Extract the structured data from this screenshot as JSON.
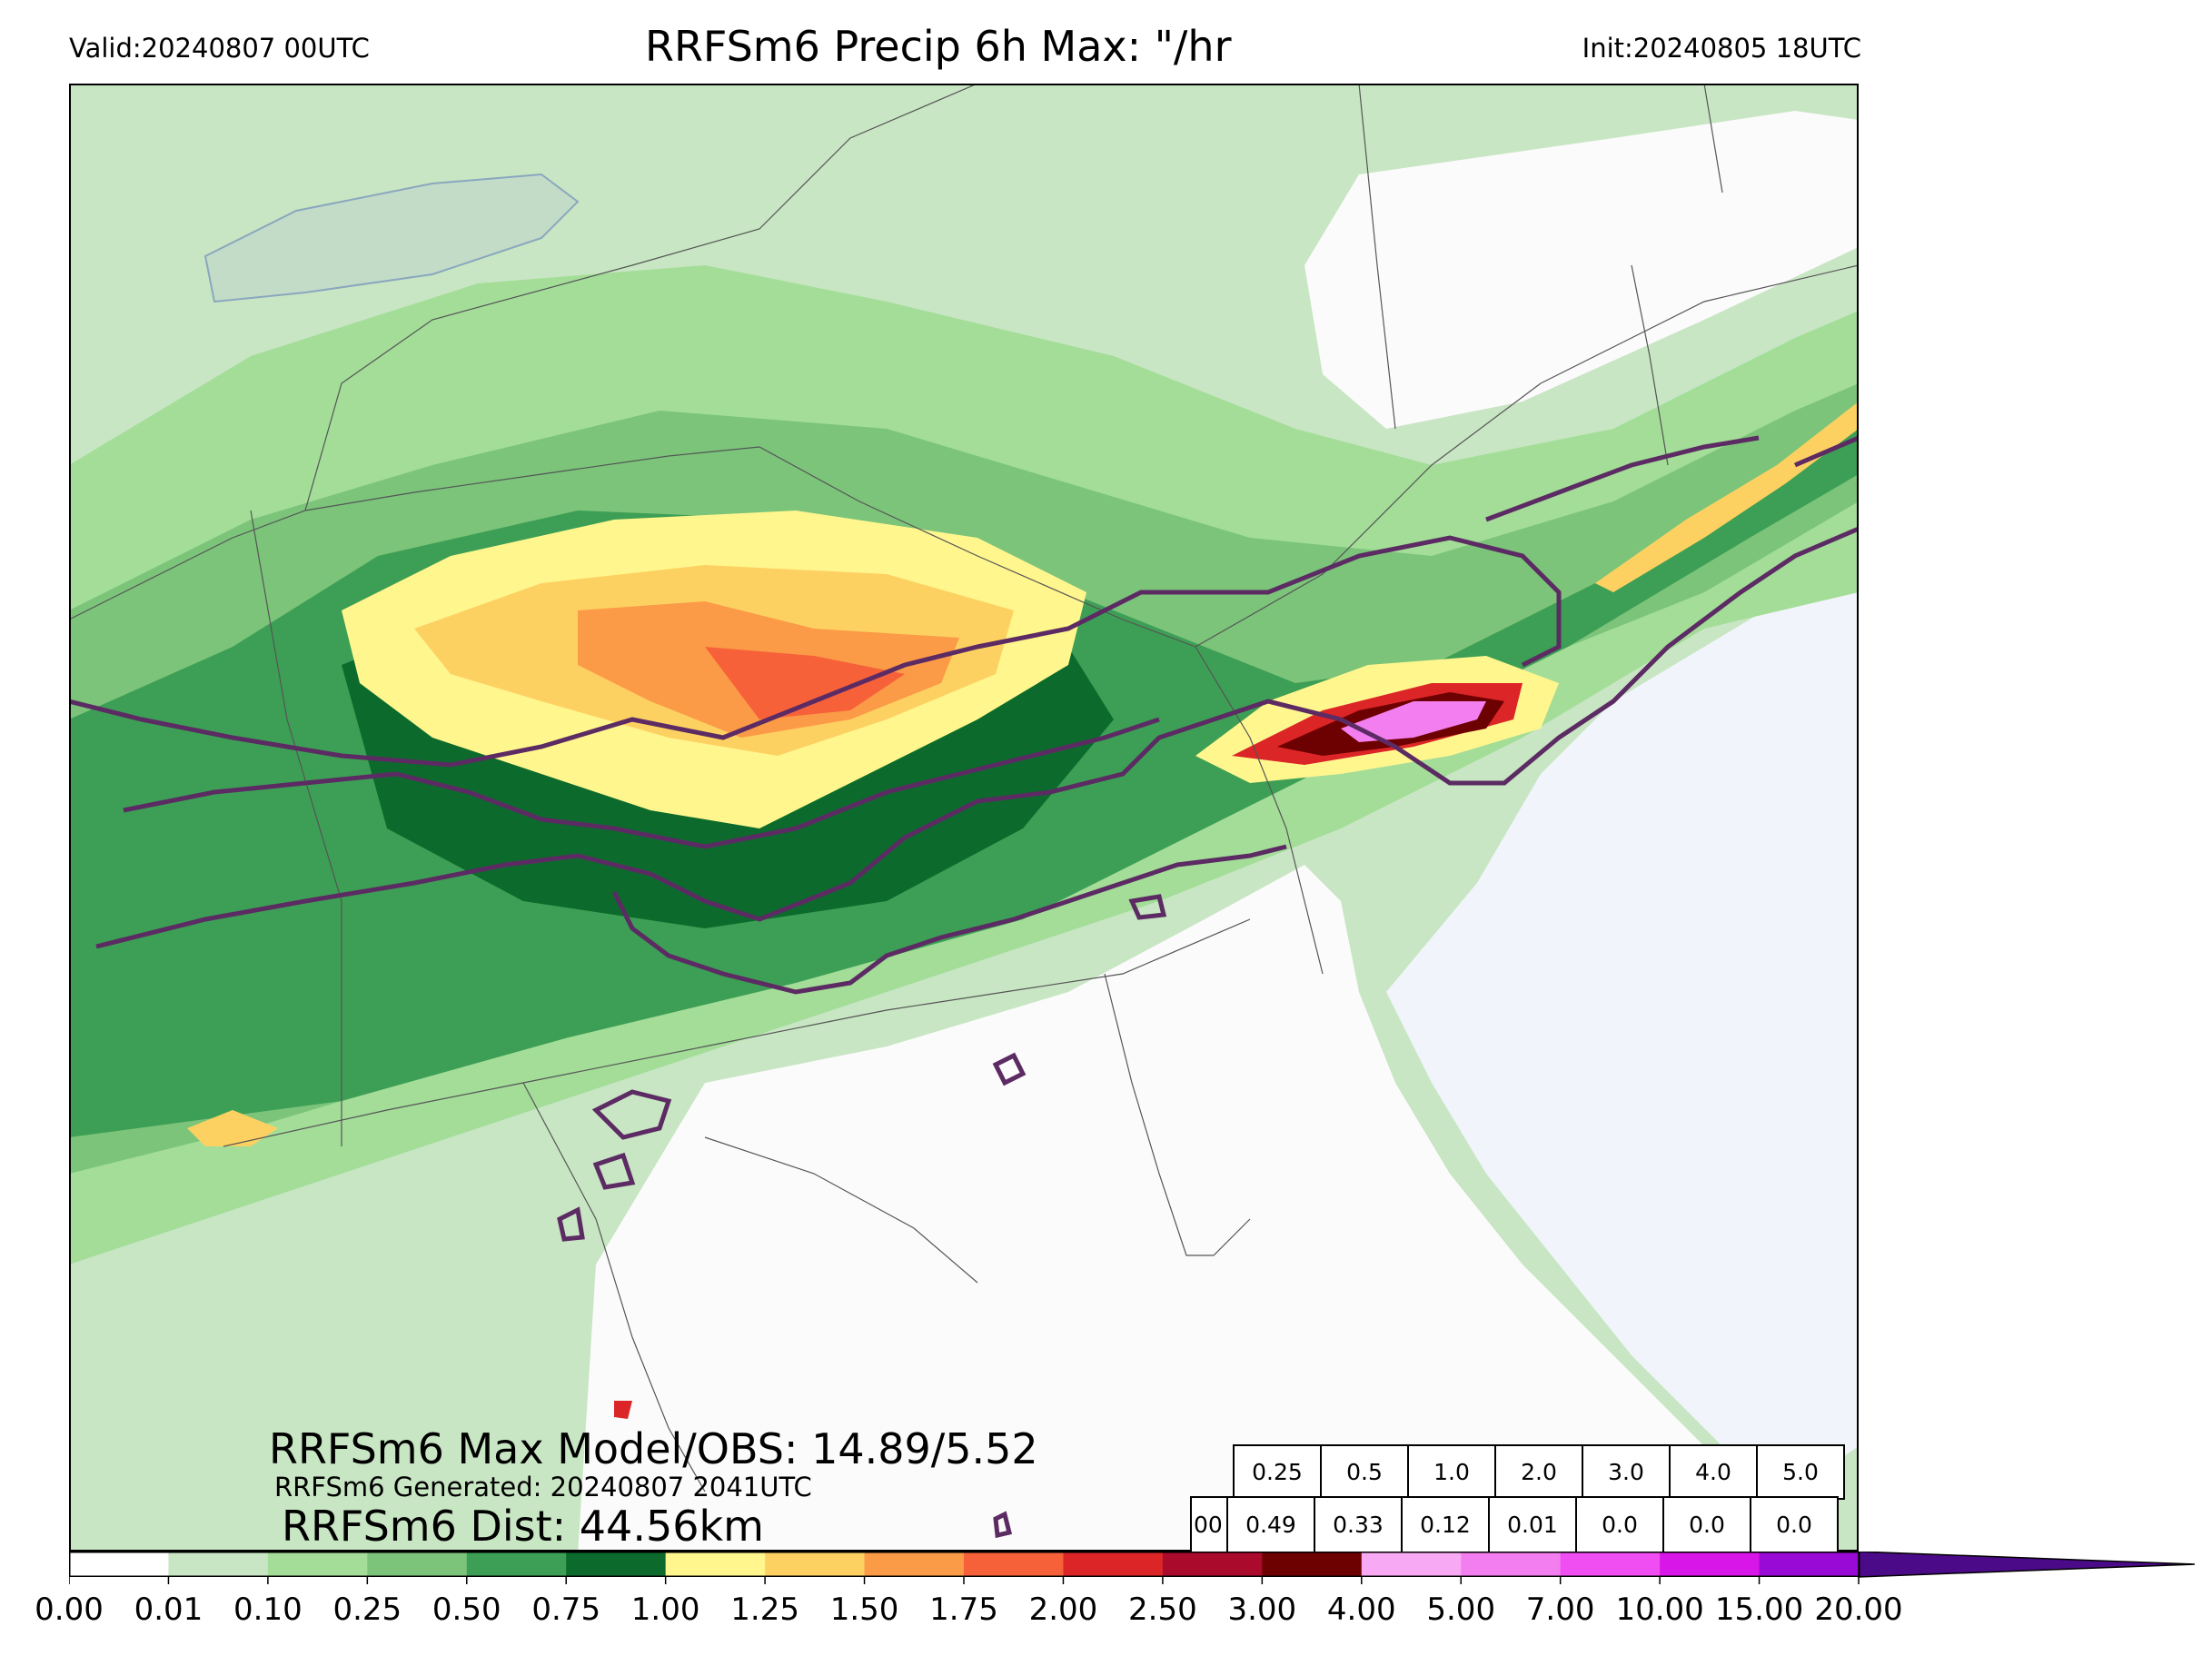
{
  "header": {
    "valid": "Valid:20240807 00UTC",
    "title": "RRFSm6 Precip 6h Max: \"/hr",
    "init": "Init:20240805 18UTC"
  },
  "stats": {
    "max_line": "RRFSm6 Max Model/OBS: 14.89/5.52",
    "generated_line": "RRFSm6 Generated: 20240807 2041UTC",
    "dist_line": "RRFSm6 Dist: 44.56km"
  },
  "threshold_table": {
    "thresholds": [
      "0.25",
      "0.5",
      "1.0",
      "2.0",
      "3.0",
      "4.0",
      "5.0"
    ],
    "lead_label": "00",
    "values": [
      "0.49",
      "0.33",
      "0.12",
      "0.01",
      "0.0",
      "0.0",
      "0.0"
    ]
  },
  "colorbar": {
    "ticks": [
      "0.00",
      "0.01",
      "0.10",
      "0.25",
      "0.50",
      "0.75",
      "1.00",
      "1.25",
      "1.50",
      "1.75",
      "2.00",
      "2.50",
      "3.00",
      "4.00",
      "5.00",
      "7.00",
      "10.00",
      "15.00",
      "20.00"
    ],
    "colors": [
      "#ffffff",
      "#c8e6c3",
      "#a3dd98",
      "#7bc47a",
      "#3d9f55",
      "#0c6b2c",
      "#fff68e",
      "#fdd161",
      "#fb9a47",
      "#f6613a",
      "#dc2527",
      "#aa0a2c",
      "#6d0000",
      "#f8a9f3",
      "#f37ef0",
      "#f04ef2",
      "#d816e7",
      "#9a0ad7"
    ],
    "extend_color": "#4b0a87"
  },
  "map": {
    "ocean_color": "#f1f5fb",
    "land_color": "#fbfbfb",
    "obs_contour_color": "#5c2b63",
    "border_color": "#555555"
  }
}
